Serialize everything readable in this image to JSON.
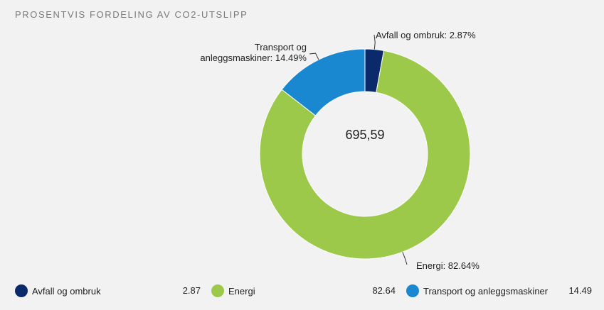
{
  "title": "PROSENTVIS FORDELING AV CO2-UTSLIPP",
  "center_value": "695,59",
  "chart_data": {
    "type": "pie",
    "title": "PROSENTVIS FORDELING AV CO2-UTSLIPP",
    "center_label": "695,59",
    "slices": [
      {
        "name": "Avfall og ombruk",
        "value": 2.87,
        "label": "Avfall og ombruk: 2.87%",
        "color": "#0b2a6b"
      },
      {
        "name": "Energi",
        "value": 82.64,
        "label": "Energi: 82.64%",
        "color": "#9dc94a"
      },
      {
        "name": "Transport og anleggsmaskiner",
        "value": 14.49,
        "label_lines": [
          "Transport og",
          "anleggsmaskiner: 14.49%"
        ],
        "color": "#1a88d0"
      }
    ]
  },
  "legend": [
    {
      "name": "Avfall og ombruk",
      "value": "2.87",
      "color": "#0b2a6b"
    },
    {
      "name": "Energi",
      "value": "82.64",
      "color": "#9dc94a"
    },
    {
      "name": "Transport og anleggsmaskiner",
      "value": "14.49",
      "color": "#1a88d0"
    }
  ]
}
